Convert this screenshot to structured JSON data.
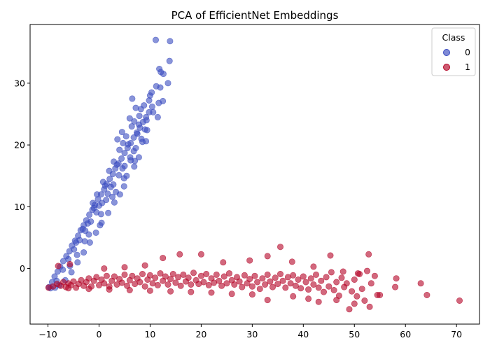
{
  "chart_data": {
    "type": "scatter",
    "title": "PCA of EfficientNet Embeddings",
    "xlabel": "",
    "ylabel": "",
    "xlim": [
      -13.5,
      74.5
    ],
    "ylim": [
      -9,
      39.5
    ],
    "xticks": [
      -10,
      0,
      10,
      20,
      30,
      40,
      50,
      60,
      70
    ],
    "yticks": [
      0,
      10,
      20,
      30
    ],
    "grid": false,
    "legend": {
      "title": "Class",
      "placement": "top-right"
    },
    "colors": {
      "class_0": "#3b4cc0",
      "class_1": "#b40426",
      "axes": "#000000",
      "background": "#ffffff"
    },
    "series": [
      {
        "name": "0",
        "points": [
          [
            -9.8,
            -3.0
          ],
          [
            -9.2,
            -2.2
          ],
          [
            -8.7,
            -1.3
          ],
          [
            -8.1,
            -0.5
          ],
          [
            -7.6,
            0.3
          ],
          [
            -7.0,
            1.2
          ],
          [
            -6.4,
            2.0
          ],
          [
            -5.8,
            2.8
          ],
          [
            -5.3,
            3.7
          ],
          [
            -4.7,
            4.5
          ],
          [
            -4.1,
            5.3
          ],
          [
            -3.6,
            6.2
          ],
          [
            -3.0,
            7.0
          ],
          [
            -2.5,
            7.8
          ],
          [
            -1.9,
            8.7
          ],
          [
            -1.3,
            9.5
          ],
          [
            -0.8,
            10.3
          ],
          [
            -0.2,
            11.2
          ],
          [
            0.4,
            12.0
          ],
          [
            1.0,
            12.8
          ],
          [
            1.5,
            13.7
          ],
          [
            2.1,
            14.5
          ],
          [
            2.7,
            15.3
          ],
          [
            3.2,
            16.2
          ],
          [
            3.8,
            17.0
          ],
          [
            4.4,
            17.8
          ],
          [
            5.0,
            18.7
          ],
          [
            5.6,
            19.5
          ],
          [
            6.2,
            20.3
          ],
          [
            6.8,
            21.2
          ],
          [
            7.4,
            22.0
          ],
          [
            8.0,
            22.8
          ],
          [
            8.6,
            23.7
          ],
          [
            9.2,
            24.5
          ],
          [
            9.8,
            25.3
          ],
          [
            -8.3,
            -2.0
          ],
          [
            -7.1,
            -0.2
          ],
          [
            -6.0,
            1.5
          ],
          [
            -4.9,
            3.1
          ],
          [
            -3.8,
            4.6
          ],
          [
            -2.7,
            6.1
          ],
          [
            -1.6,
            7.6
          ],
          [
            -0.5,
            9.1
          ],
          [
            0.6,
            10.6
          ],
          [
            1.7,
            12.1
          ],
          [
            2.8,
            13.6
          ],
          [
            3.9,
            15.1
          ],
          [
            5.0,
            16.6
          ],
          [
            6.1,
            18.0
          ],
          [
            7.2,
            19.5
          ],
          [
            8.3,
            21.0
          ],
          [
            9.4,
            22.4
          ],
          [
            -4.5,
            4.2
          ],
          [
            -2.2,
            7.3
          ],
          [
            0.0,
            10.2
          ],
          [
            2.3,
            13.2
          ],
          [
            4.6,
            16.2
          ],
          [
            6.8,
            19.0
          ],
          [
            -3.2,
            6.4
          ],
          [
            -1.0,
            9.8
          ],
          [
            1.2,
            13.4
          ],
          [
            3.5,
            16.8
          ],
          [
            5.7,
            20.1
          ],
          [
            7.8,
            23.3
          ],
          [
            -2.8,
            4.4
          ],
          [
            0.4,
            8.8
          ],
          [
            2.6,
            11.6
          ],
          [
            4.9,
            14.6
          ],
          [
            7.0,
            17.4
          ],
          [
            9.2,
            20.6
          ],
          [
            -1.2,
            10.6
          ],
          [
            0.8,
            14.0
          ],
          [
            2.9,
            17.3
          ],
          [
            4.7,
            20.3
          ],
          [
            6.4,
            23.0
          ],
          [
            10.0,
            28.0
          ],
          [
            10.3,
            28.5
          ],
          [
            11.2,
            29.5
          ],
          [
            12.0,
            29.3
          ],
          [
            12.6,
            31.5
          ],
          [
            13.5,
            30.0
          ],
          [
            11.8,
            32.3
          ],
          [
            12.1,
            31.8
          ],
          [
            11.1,
            37.0
          ],
          [
            13.9,
            36.8
          ],
          [
            13.8,
            33.6
          ],
          [
            12.5,
            27.1
          ],
          [
            11.7,
            26.8
          ],
          [
            10.6,
            25.3
          ],
          [
            11.5,
            24.5
          ],
          [
            9.3,
            24.0
          ],
          [
            8.2,
            25.8
          ],
          [
            6.5,
            27.5
          ],
          [
            9.8,
            27.2
          ],
          [
            10.4,
            26.2
          ],
          [
            7.2,
            26.0
          ],
          [
            6.9,
            23.8
          ],
          [
            9.0,
            22.5
          ],
          [
            8.5,
            20.5
          ],
          [
            7.8,
            18.0
          ],
          [
            6.9,
            16.5
          ],
          [
            4.9,
            13.3
          ],
          [
            4.1,
            12.0
          ],
          [
            3.0,
            10.7
          ],
          [
            1.8,
            9.0
          ],
          [
            0.5,
            7.4
          ],
          [
            -0.6,
            5.8
          ],
          [
            -1.8,
            4.2
          ],
          [
            -3.0,
            2.6
          ],
          [
            -4.2,
            1.0
          ],
          [
            -5.4,
            -0.6
          ],
          [
            -6.6,
            -1.9
          ],
          [
            -7.8,
            -2.7
          ],
          [
            -9.5,
            -3.2
          ],
          [
            -8.6,
            -3.1
          ],
          [
            -5.7,
            0.4
          ],
          [
            -4.3,
            2.2
          ],
          [
            -2.0,
            5.5
          ],
          [
            0.2,
            7.0
          ],
          [
            1.4,
            11.1
          ],
          [
            3.3,
            12.4
          ],
          [
            5.4,
            15.0
          ],
          [
            6.2,
            17.5
          ],
          [
            7.5,
            21.8
          ],
          [
            5.3,
            21.4
          ],
          [
            4.0,
            19.2
          ],
          [
            2.0,
            15.8
          ],
          [
            -0.4,
            12.0
          ],
          [
            6.0,
            24.3
          ],
          [
            4.5,
            22.1
          ],
          [
            3.6,
            20.9
          ],
          [
            8.8,
            26.4
          ],
          [
            7.9,
            24.7
          ]
        ]
      },
      {
        "name": "1",
        "points": [
          [
            -9.9,
            -3.1
          ],
          [
            -9.0,
            -2.9
          ],
          [
            -8.2,
            -2.5
          ],
          [
            -7.5,
            -2.8
          ],
          [
            -7.0,
            -2.2
          ],
          [
            -6.5,
            -3.0
          ],
          [
            -6.0,
            -2.4
          ],
          [
            -5.5,
            -2.7
          ],
          [
            -5.0,
            -2.1
          ],
          [
            -4.5,
            -3.1
          ],
          [
            -4.0,
            -2.5
          ],
          [
            -3.5,
            -1.9
          ],
          [
            -3.0,
            -2.8
          ],
          [
            -2.5,
            -2.2
          ],
          [
            -2.0,
            -1.6
          ],
          [
            -1.5,
            -2.9
          ],
          [
            -1.0,
            -2.0
          ],
          [
            -0.5,
            -1.4
          ],
          [
            0.0,
            -2.7
          ],
          [
            0.5,
            -1.8
          ],
          [
            1.0,
            -2.4
          ],
          [
            1.5,
            -1.2
          ],
          [
            2.0,
            -2.9
          ],
          [
            2.5,
            -2.0
          ],
          [
            3.0,
            -1.3
          ],
          [
            3.5,
            -2.6
          ],
          [
            4.0,
            -1.7
          ],
          [
            4.5,
            -2.3
          ],
          [
            5.0,
            -1.0
          ],
          [
            5.5,
            -2.8
          ],
          [
            6.0,
            -1.9
          ],
          [
            6.5,
            -1.2
          ],
          [
            7.0,
            -2.5
          ],
          [
            7.5,
            -1.6
          ],
          [
            8.0,
            -2.2
          ],
          [
            8.5,
            -0.9
          ],
          [
            9.0,
            -2.9
          ],
          [
            9.5,
            -1.8
          ],
          [
            10.0,
            -1.1
          ],
          [
            10.5,
            -2.4
          ],
          [
            11.0,
            -1.5
          ],
          [
            11.5,
            -2.7
          ],
          [
            12.0,
            -0.8
          ],
          [
            12.5,
            -2.0
          ],
          [
            13.0,
            -1.3
          ],
          [
            13.5,
            -2.6
          ],
          [
            14.0,
            -1.7
          ],
          [
            14.5,
            -0.9
          ],
          [
            15.0,
            -2.3
          ],
          [
            15.5,
            -1.4
          ],
          [
            16.0,
            -2.8
          ],
          [
            16.5,
            -1.0
          ],
          [
            17.0,
            -2.1
          ],
          [
            17.5,
            -1.5
          ],
          [
            18.0,
            -2.6
          ],
          [
            18.5,
            -0.7
          ],
          [
            19.0,
            -1.9
          ],
          [
            19.5,
            -2.5
          ],
          [
            20.0,
            -1.2
          ],
          [
            20.5,
            -2.2
          ],
          [
            21.0,
            -0.9
          ],
          [
            21.5,
            -2.7
          ],
          [
            22.0,
            -1.6
          ],
          [
            22.5,
            -2.3
          ],
          [
            23.0,
            -1.0
          ],
          [
            23.5,
            -2.0
          ],
          [
            24.0,
            -2.8
          ],
          [
            24.5,
            -1.3
          ],
          [
            25.0,
            -2.4
          ],
          [
            25.5,
            -0.8
          ],
          [
            26.0,
            -1.9
          ],
          [
            26.5,
            -2.6
          ],
          [
            27.0,
            -1.4
          ],
          [
            27.5,
            -2.1
          ],
          [
            28.0,
            -3.0
          ],
          [
            28.5,
            -1.1
          ],
          [
            29.0,
            -2.4
          ],
          [
            29.5,
            -1.7
          ],
          [
            30.0,
            -2.9
          ],
          [
            30.5,
            -1.2
          ],
          [
            31.0,
            -2.2
          ],
          [
            31.5,
            -3.3
          ],
          [
            32.0,
            -1.6
          ],
          [
            32.5,
            -2.6
          ],
          [
            33.0,
            -1.0
          ],
          [
            33.5,
            -2.1
          ],
          [
            34.0,
            -3.0
          ],
          [
            34.5,
            -1.5
          ],
          [
            35.0,
            -2.5
          ],
          [
            35.5,
            -0.9
          ],
          [
            36.0,
            -2.0
          ],
          [
            36.5,
            -3.1
          ],
          [
            37.0,
            -1.4
          ],
          [
            37.5,
            -2.4
          ],
          [
            38.0,
            -1.1
          ],
          [
            38.5,
            -2.8
          ],
          [
            39.0,
            -1.8
          ],
          [
            39.5,
            -3.2
          ],
          [
            40.0,
            -1.3
          ],
          [
            40.5,
            -2.2
          ],
          [
            41.0,
            -3.4
          ],
          [
            41.5,
            -1.6
          ],
          [
            42.0,
            -2.6
          ],
          [
            42.5,
            -1.0
          ],
          [
            43.0,
            -3.1
          ],
          [
            43.5,
            -2.0
          ],
          [
            44.0,
            -3.8
          ],
          [
            44.5,
            -1.4
          ],
          [
            45.0,
            -2.9
          ],
          [
            45.5,
            -0.6
          ],
          [
            46.0,
            -3.5
          ],
          [
            46.5,
            -2.2
          ],
          [
            47.0,
            -4.4
          ],
          [
            47.5,
            -1.5
          ],
          [
            48.0,
            -3.0
          ],
          [
            48.5,
            -2.4
          ],
          [
            49.0,
            -6.6
          ],
          [
            49.5,
            -3.7
          ],
          [
            50.0,
            -1.8
          ],
          [
            50.5,
            -4.5
          ],
          [
            51.0,
            -0.9
          ],
          [
            51.5,
            -3.3
          ],
          [
            52.0,
            -5.2
          ],
          [
            52.5,
            -0.4
          ],
          [
            52.8,
            2.3
          ],
          [
            53.0,
            -6.2
          ],
          [
            53.3,
            -2.4
          ],
          [
            54.0,
            -1.2
          ],
          [
            54.5,
            -4.3
          ],
          [
            55.0,
            -4.3
          ],
          [
            58.0,
            -3.0
          ],
          [
            58.2,
            -1.6
          ],
          [
            63.0,
            -2.4
          ],
          [
            64.2,
            -4.3
          ],
          [
            70.6,
            -5.2
          ],
          [
            35.5,
            3.5
          ],
          [
            45.3,
            2.1
          ],
          [
            33.0,
            2.0
          ],
          [
            20.0,
            2.3
          ],
          [
            15.8,
            2.3
          ],
          [
            12.5,
            1.7
          ],
          [
            -8.0,
            0.4
          ],
          [
            -5.7,
            0.7
          ],
          [
            29.5,
            1.3
          ],
          [
            37.8,
            1.1
          ],
          [
            42.0,
            0.3
          ],
          [
            47.8,
            -0.5
          ],
          [
            50.7,
            -0.8
          ],
          [
            24.3,
            1.0
          ],
          [
            9.0,
            0.5
          ],
          [
            5.0,
            0.2
          ],
          [
            1.0,
            0.0
          ],
          [
            33.0,
            -5.1
          ],
          [
            38.0,
            -4.5
          ],
          [
            41.0,
            -4.9
          ],
          [
            43.0,
            -5.4
          ],
          [
            46.5,
            -5.1
          ],
          [
            50.0,
            -5.7
          ],
          [
            30.0,
            -4.2
          ],
          [
            26.0,
            -4.1
          ],
          [
            22.0,
            -3.9
          ],
          [
            18.0,
            -3.8
          ],
          [
            14.0,
            -3.7
          ],
          [
            10.0,
            -3.6
          ],
          [
            6.0,
            -3.5
          ],
          [
            2.0,
            -3.4
          ],
          [
            -2.0,
            -3.3
          ],
          [
            -6.0,
            -3.2
          ]
        ]
      }
    ]
  }
}
